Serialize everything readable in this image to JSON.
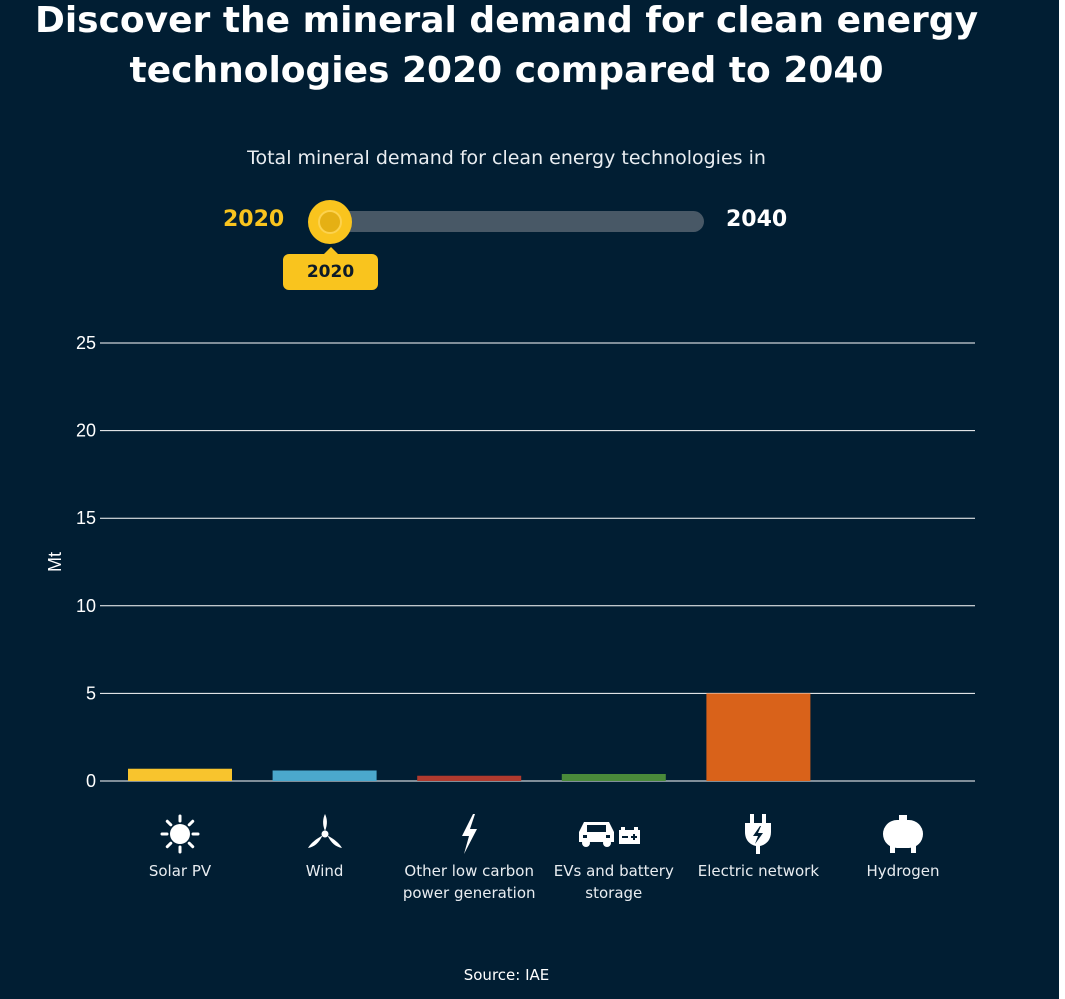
{
  "title": {
    "line1": "Discover the mineral demand for clean energy",
    "line2": "technologies 2020 compared to 2040"
  },
  "subtitle": "Total mineral demand for clean energy technologies in",
  "slider": {
    "start_label": "2020",
    "end_label": "2040",
    "selected": "2020",
    "position": 0
  },
  "source": "Source: IAE",
  "colors": {
    "background": "#011e33",
    "accent": "#f9c41e"
  },
  "chart_data": {
    "type": "bar",
    "ylabel": "Mt",
    "ylim": [
      0,
      25
    ],
    "yticks": [
      0,
      5,
      10,
      15,
      20,
      25
    ],
    "grid": true,
    "categories": [
      {
        "label_lines": [
          "Solar PV"
        ],
        "value": 0.7,
        "color": "#f8c42d",
        "icon": "sun-icon"
      },
      {
        "label_lines": [
          "Wind"
        ],
        "value": 0.6,
        "color": "#4ba8cc",
        "icon": "wind-turbine-icon"
      },
      {
        "label_lines": [
          "Other low carbon",
          "power generation"
        ],
        "value": 0.3,
        "color": "#b03a2e",
        "icon": "lightning-icon"
      },
      {
        "label_lines": [
          "EVs and battery",
          "storage"
        ],
        "value": 0.4,
        "color": "#4a8a3a",
        "icon": "car-battery-icon"
      },
      {
        "label_lines": [
          "Electric network"
        ],
        "value": 5.0,
        "color": "#d9621a",
        "icon": "plug-icon"
      },
      {
        "label_lines": [
          "Hydrogen"
        ],
        "value": 0,
        "color": "#ffffff",
        "icon": "hydrogen-tank-icon"
      }
    ]
  }
}
